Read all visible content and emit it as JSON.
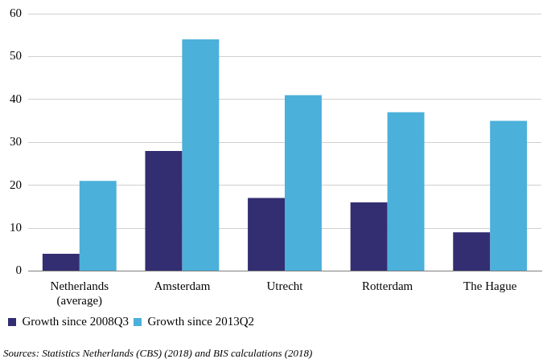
{
  "chart_data": {
    "type": "bar",
    "categories": [
      [
        "Netherlands",
        "(average)"
      ],
      "Amsterdam",
      "Utrecht",
      "Rotterdam",
      "The Hague"
    ],
    "series": [
      {
        "name": "Growth since 2008Q3",
        "color": "#332e72",
        "values": [
          4,
          28,
          17,
          16,
          9
        ]
      },
      {
        "name": "Growth since 2013Q2",
        "color": "#4bb0da",
        "values": [
          21,
          54,
          41,
          37,
          35
        ]
      }
    ],
    "ylim": [
      0,
      60
    ],
    "yticks": [
      0,
      10,
      20,
      30,
      40,
      50,
      60
    ],
    "grid": true,
    "legend": "bottom left",
    "annotations": [
      "Sources: Statistics Netherlands (CBS) (2018) and BIS calculations (2018)"
    ]
  }
}
